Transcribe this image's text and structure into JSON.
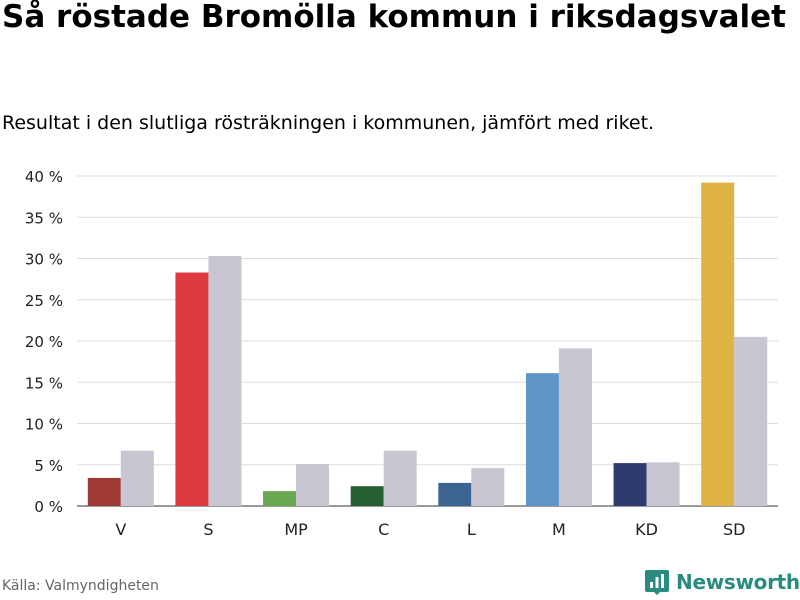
{
  "title": "Så röstade Bromölla kommun i riksdagsvalet",
  "subtitle": "Resultat i den slutliga rösträkningen i kommunen, jämfört med riket.",
  "source": "Källa: Valmyndigheten",
  "brand": {
    "name": "Newsworthy",
    "color": "#2a8c7e",
    "icon": "bar-chart-icon"
  },
  "chart_data": {
    "type": "bar",
    "title": "Så röstade Bromölla kommun i riksdagsvalet",
    "xlabel": "",
    "ylabel": "",
    "ylim": [
      0,
      40
    ],
    "yticks": [
      0,
      5,
      10,
      15,
      20,
      25,
      30,
      35,
      40
    ],
    "tick_suffix": " %",
    "grid": true,
    "categories": [
      "V",
      "S",
      "MP",
      "C",
      "L",
      "M",
      "KD",
      "SD"
    ],
    "series": [
      {
        "name": "Bromölla kommun",
        "values": [
          3.4,
          28.3,
          1.8,
          2.4,
          2.8,
          16.1,
          5.2,
          39.2
        ],
        "colors": [
          "#9e3a33",
          "#dc3a3f",
          "#6aa751",
          "#275f32",
          "#3d6592",
          "#6096c7",
          "#2e3b6f",
          "#dfb445"
        ]
      },
      {
        "name": "Riket",
        "values": [
          6.7,
          30.3,
          5.1,
          6.7,
          4.6,
          19.1,
          5.3,
          20.5
        ],
        "color": "#c7c6d1"
      }
    ]
  }
}
